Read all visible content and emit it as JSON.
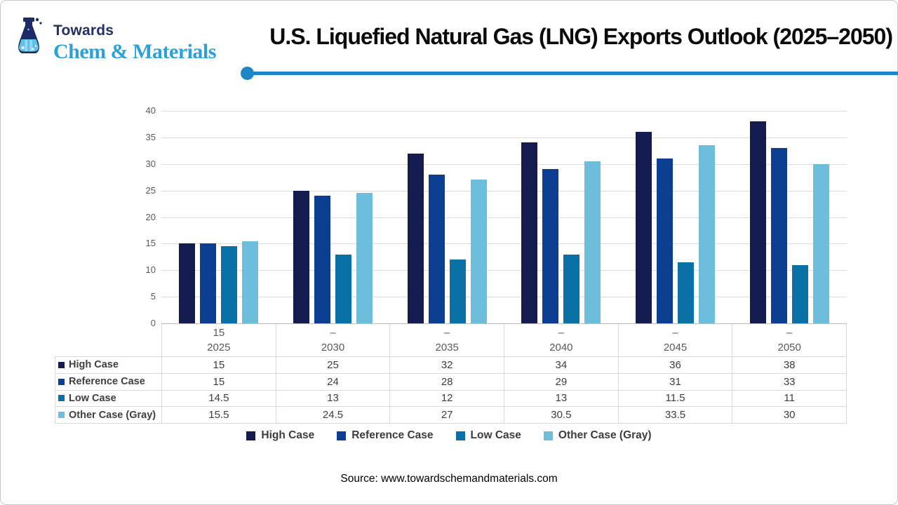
{
  "header": {
    "brand_top": "Towards",
    "brand_bottom": "Chem & Materials",
    "title": "U.S. Liquefied Natural Gas (LNG) Exports Outlook (2025–2050)"
  },
  "accent_colors": {
    "divider_blue": "#1d86c7",
    "brand_navy": "#232f63",
    "brand_light_blue": "#2aa1d9"
  },
  "chart_data": {
    "type": "bar",
    "title": "U.S. Liquefied Natural Gas (LNG) Exports Outlook (2025–2050)",
    "categories": [
      "2025",
      "2030",
      "2035",
      "2040",
      "2045",
      "2050"
    ],
    "x_sublabels": [
      "15",
      "–",
      "–",
      "–",
      "–",
      "–"
    ],
    "series": [
      {
        "name": "High Case",
        "color": "#141b4e",
        "values": [
          15,
          25,
          32,
          34,
          36,
          38
        ]
      },
      {
        "name": "Reference Case",
        "color": "#0c3e92",
        "values": [
          15,
          24,
          28,
          29,
          31,
          33
        ]
      },
      {
        "name": "Low Case",
        "color": "#0971a5",
        "values": [
          14.5,
          13,
          12,
          13,
          11.5,
          11
        ]
      },
      {
        "name": "Other Case (Gray)",
        "color": "#6dbedd",
        "values": [
          15.5,
          24.5,
          27,
          30.5,
          33.5,
          30
        ]
      }
    ],
    "ylim": [
      0,
      40
    ],
    "yticks": [
      0,
      5,
      10,
      15,
      20,
      25,
      30,
      35,
      40
    ],
    "grid": true,
    "legend_position": "bottom",
    "data_table_shown": true
  },
  "footer": {
    "source": "Source: www.towardschemandmaterials.com"
  }
}
